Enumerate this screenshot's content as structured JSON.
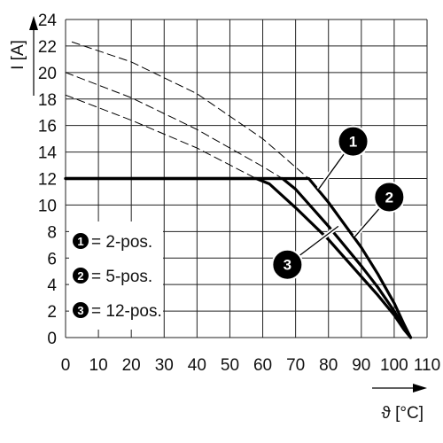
{
  "chart_data": {
    "type": "line",
    "xlabel": "ϑ [°C]",
    "ylabel": "I [A]",
    "xlim": [
      0,
      110
    ],
    "ylim": [
      0,
      24
    ],
    "x_ticks": [
      "0",
      "10",
      "20",
      "30",
      "40",
      "50",
      "60",
      "70",
      "80",
      "90",
      "100",
      "110"
    ],
    "y_ticks": [
      "0",
      "2",
      "4",
      "6",
      "8",
      "10",
      "12",
      "14",
      "16",
      "18",
      "20",
      "22",
      "24"
    ],
    "grid": true,
    "legend": [
      {
        "marker": "1",
        "text": "= 2-pos."
      },
      {
        "marker": "2",
        "text": "= 5-pos."
      },
      {
        "marker": "3",
        "text": "= 12-pos."
      }
    ],
    "series": [
      {
        "marker": "1",
        "style": "solid",
        "x": [
          0,
          74,
          80,
          90,
          95,
          100,
          103,
          105
        ],
        "y": [
          12,
          12,
          10.2,
          6.8,
          4.8,
          2.6,
          1.0,
          0
        ]
      },
      {
        "marker": "2",
        "style": "solid",
        "x": [
          0,
          66,
          70,
          80,
          90,
          95,
          100,
          103,
          105
        ],
        "y": [
          12,
          12,
          11.2,
          8.4,
          5.4,
          3.8,
          2.0,
          0.8,
          0
        ]
      },
      {
        "marker": "3",
        "style": "solid",
        "x": [
          0,
          58,
          62,
          70,
          80,
          90,
          95,
          100,
          103,
          105
        ],
        "y": [
          12,
          12,
          11.6,
          9.8,
          7.4,
          4.6,
          3.2,
          1.7,
          0.6,
          0
        ]
      },
      {
        "marker": "1",
        "style": "dashed",
        "x": [
          2,
          20,
          40,
          60,
          74
        ],
        "y": [
          22.3,
          20.8,
          18.4,
          15.0,
          12.0
        ]
      },
      {
        "marker": "2",
        "style": "dashed",
        "x": [
          0,
          20,
          40,
          60,
          66
        ],
        "y": [
          20.0,
          18.1,
          15.7,
          12.9,
          12.0
        ]
      },
      {
        "marker": "3",
        "style": "dashed",
        "x": [
          0,
          20,
          40,
          58
        ],
        "y": [
          18.3,
          16.4,
          14.3,
          12.0
        ]
      }
    ],
    "annotations": [
      {
        "label": "1",
        "x": 87.5,
        "y": 14.8,
        "line_to": [
          77,
          11.2
        ]
      },
      {
        "label": "2",
        "x": 98.5,
        "y": 10.6,
        "line_to": [
          88,
          7.6
        ]
      },
      {
        "label": "3",
        "x": 67.5,
        "y": 5.5,
        "line_to": [
          83,
          8.4
        ]
      }
    ]
  }
}
